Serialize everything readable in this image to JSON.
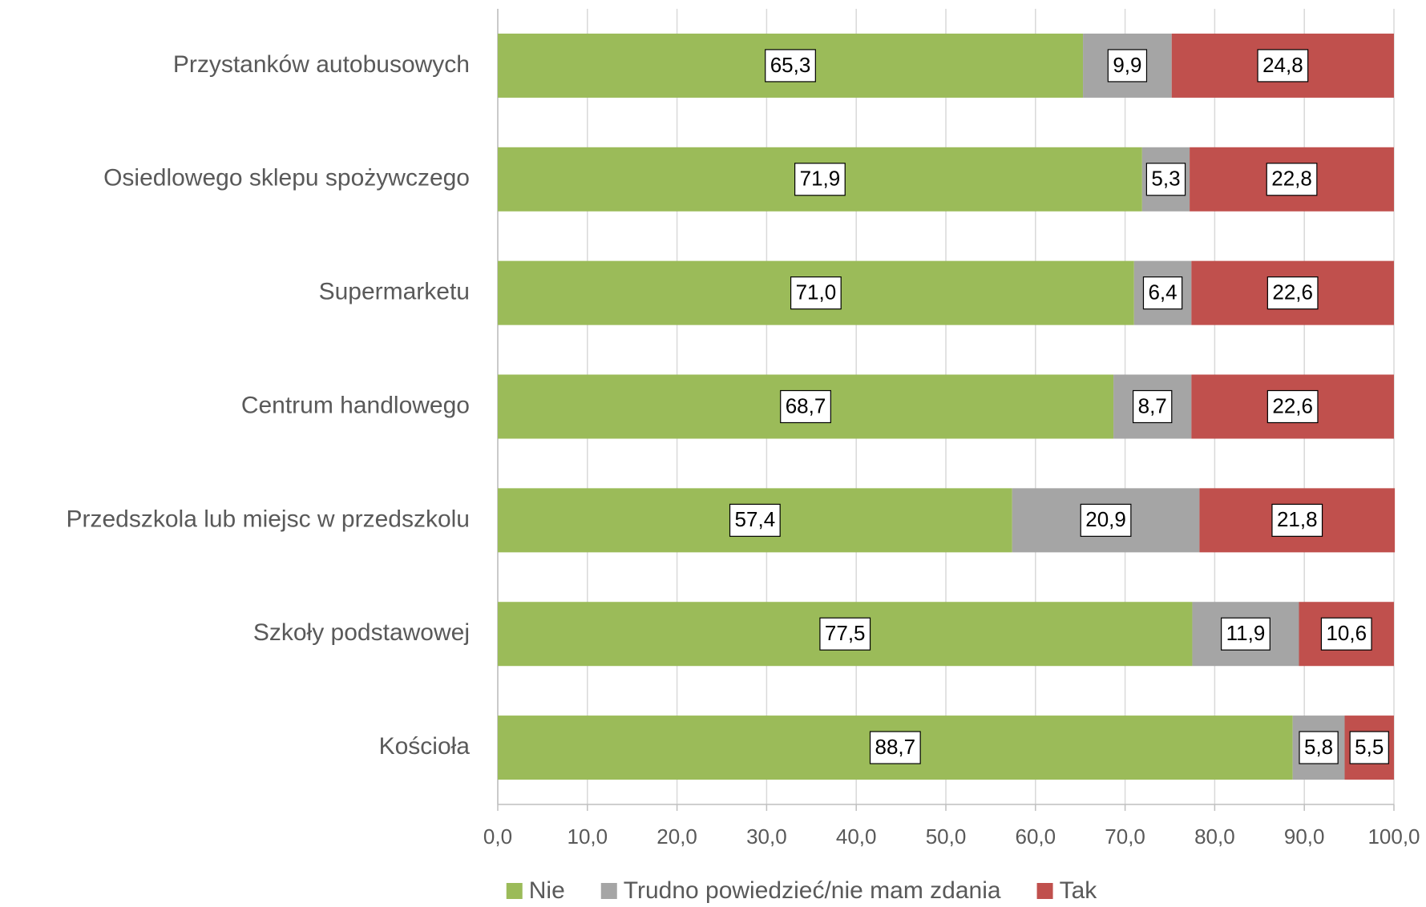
{
  "chart_data": {
    "type": "stacked-bar-horizontal",
    "categories": [
      "Przystanków autobusowych",
      "Osiedlowego sklepu spożywczego",
      "Supermarketu",
      "Centrum handlowego",
      "Przedszkola lub miejsc w przedszkolu",
      "Szkoły podstawowej",
      "Kościoła"
    ],
    "series": [
      {
        "name": "Nie",
        "color": "#9bbb59",
        "values": [
          65.3,
          71.9,
          71.0,
          68.7,
          57.4,
          77.5,
          88.7
        ],
        "value_labels": [
          "65,3",
          "71,9",
          "71,0",
          "68,7",
          "57,4",
          "77,5",
          "88,7"
        ]
      },
      {
        "name": "Trudno powiedzieć/nie mam zdania",
        "color": "#a5a5a5",
        "values": [
          9.9,
          5.3,
          6.4,
          8.7,
          20.9,
          11.9,
          5.8
        ],
        "value_labels": [
          "9,9",
          "5,3",
          "6,4",
          "8,7",
          "20,9",
          "11,9",
          "5,8"
        ]
      },
      {
        "name": "Tak",
        "color": "#c0504d",
        "values": [
          24.8,
          22.8,
          22.6,
          22.6,
          21.8,
          10.6,
          5.5
        ],
        "value_labels": [
          "24,8",
          "22,8",
          "22,6",
          "22,6",
          "21,8",
          "10,6",
          "5,5"
        ]
      }
    ],
    "xlim": [
      0,
      100
    ],
    "xticks": [
      {
        "value": 0,
        "label": "0,0"
      },
      {
        "value": 10,
        "label": "10,0"
      },
      {
        "value": 20,
        "label": "20,0"
      },
      {
        "value": 30,
        "label": "30,0"
      },
      {
        "value": 40,
        "label": "40,0"
      },
      {
        "value": 50,
        "label": "50,0"
      },
      {
        "value": 60,
        "label": "60,0"
      },
      {
        "value": 70,
        "label": "70,0"
      },
      {
        "value": 80,
        "label": "80,0"
      },
      {
        "value": 90,
        "label": "90,0"
      },
      {
        "value": 100,
        "label": "100,0"
      }
    ],
    "grid": true,
    "legend": "bottom"
  }
}
